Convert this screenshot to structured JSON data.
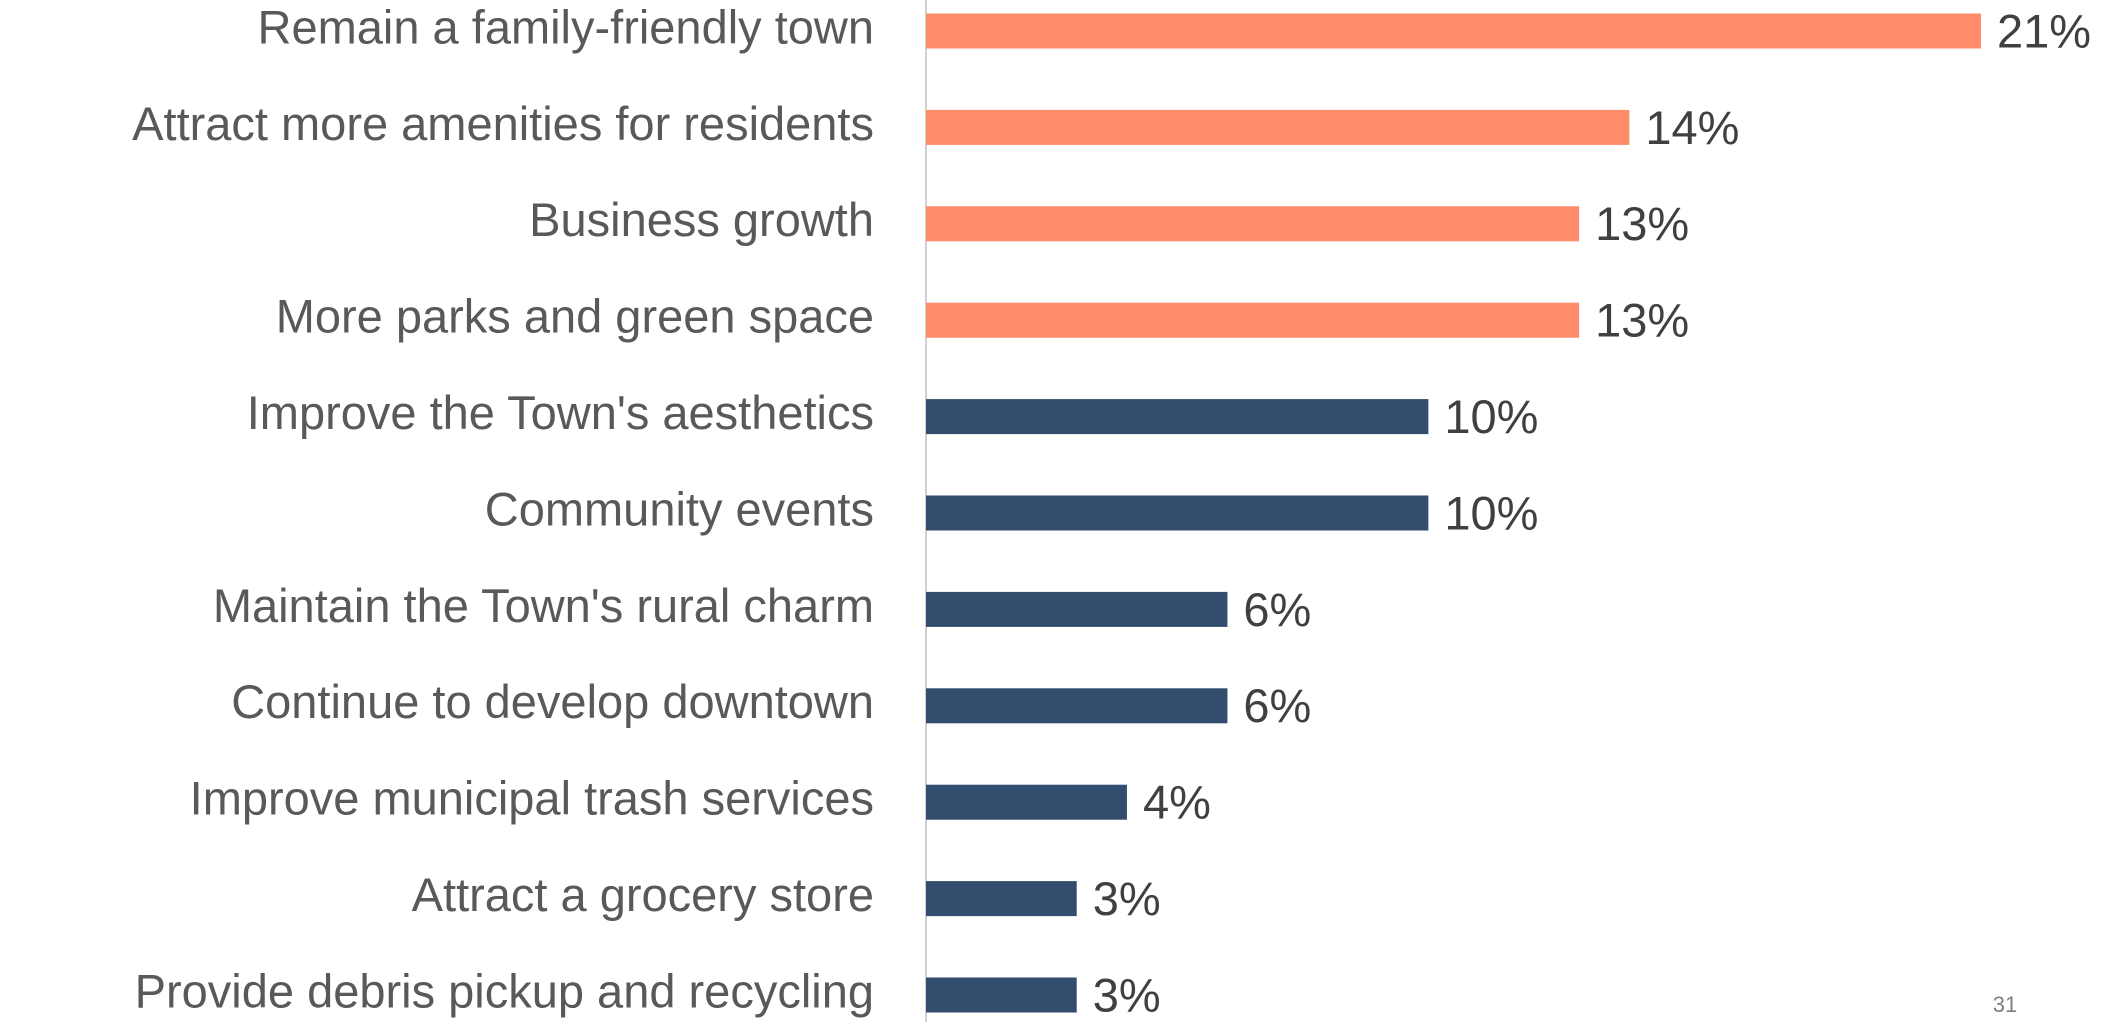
{
  "chart_data": {
    "type": "hbar",
    "categories": [
      "Remain a family-friendly town",
      "Attract more amenities for residents",
      "Business growth",
      "More parks and green space",
      "Improve the Town's aesthetics",
      "Community events",
      "Maintain the Town's rural charm",
      "Continue to develop downtown",
      "Improve municipal trash services",
      "Attract a grocery store",
      "Provide debris pickup and recycling"
    ],
    "values": [
      21,
      14,
      13,
      13,
      10,
      10,
      6,
      6,
      4,
      3,
      3
    ],
    "value_labels": [
      "21%",
      "14%",
      "13%",
      "13%",
      "10%",
      "10%",
      "6%",
      "6%",
      "4%",
      "3%",
      "3%"
    ],
    "colors": [
      "#ff8c69",
      "#ff8c69",
      "#ff8c69",
      "#ff8c69",
      "#334d6e",
      "#334d6e",
      "#334d6e",
      "#334d6e",
      "#334d6e",
      "#334d6e",
      "#334d6e"
    ],
    "xlim": [
      0,
      21
    ]
  },
  "page_number": "31"
}
